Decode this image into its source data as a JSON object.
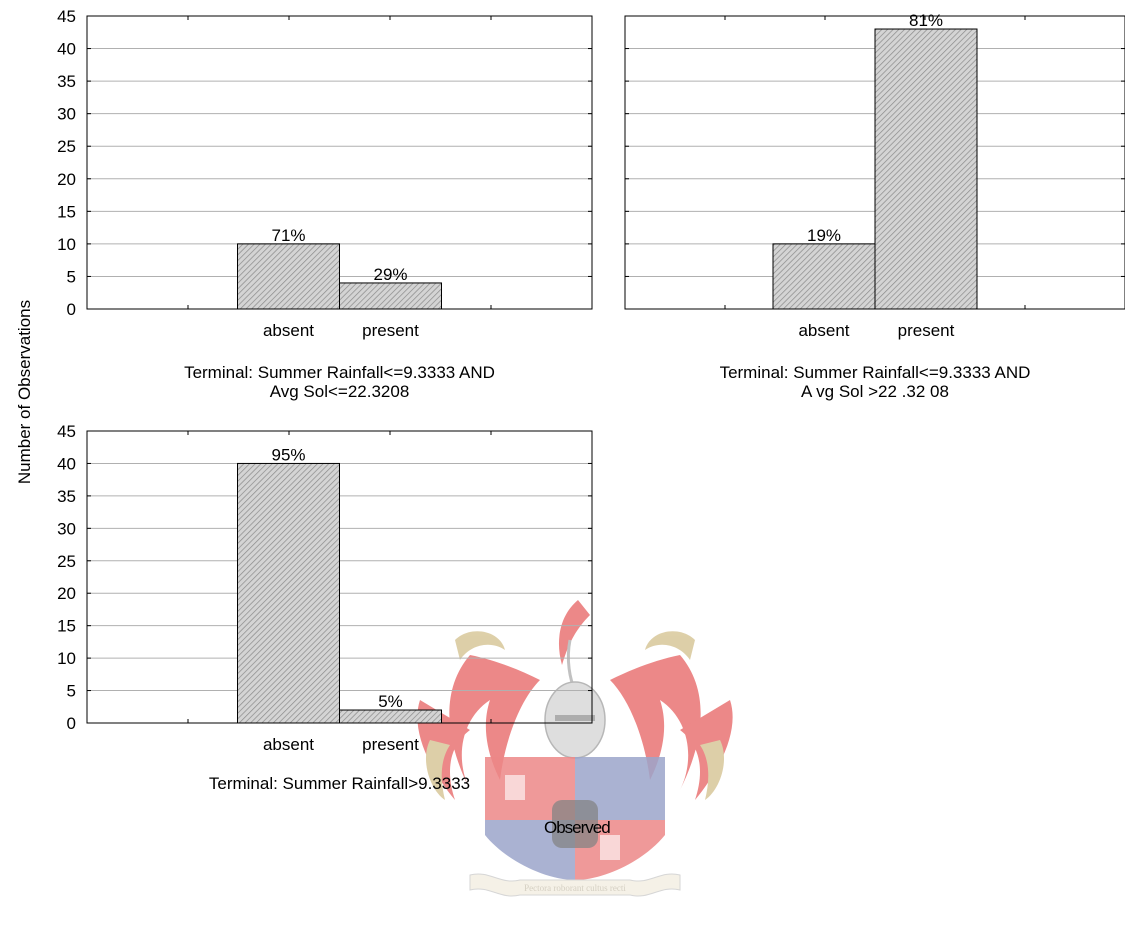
{
  "figure": {
    "ylabel": "Number of Observations",
    "observed_label": "Observed",
    "crest_motto": "Pectora roborant cultus recti",
    "colors": {
      "bar_fill": "#d4d4d4",
      "bar_hatch": "#8a8a8a",
      "axis": "#000000",
      "grid": "#b0b0b0",
      "crest_red": "#e03a3a",
      "crest_gold": "#c8b070",
      "crest_blue": "#5a6aa8"
    }
  },
  "chart_data": [
    {
      "type": "bar",
      "title": [
        "Terminal: Summer Rainfall<=9.3333 AND",
        "Avg Sol<=22.3208"
      ],
      "categories": [
        "absent",
        "present"
      ],
      "values": [
        10,
        4
      ],
      "labels": [
        "71%",
        "29%"
      ],
      "ylim": [
        0,
        45
      ],
      "yticks": [
        0,
        5,
        10,
        15,
        20,
        25,
        30,
        35,
        40,
        45
      ],
      "grid": true,
      "show_tick_labels": true
    },
    {
      "type": "bar",
      "title": [
        "Terminal: Summer Rainfall<=9.3333 AND",
        "A vg Sol >22 .32 08"
      ],
      "categories": [
        "absent",
        "present"
      ],
      "values": [
        10,
        43
      ],
      "labels": [
        "19%",
        "81%"
      ],
      "ylim": [
        0,
        45
      ],
      "yticks": [
        0,
        5,
        10,
        15,
        20,
        25,
        30,
        35,
        40,
        45
      ],
      "grid": true,
      "show_tick_labels": false
    },
    {
      "type": "bar",
      "title": [
        "Terminal: Summer Rainfall>9.3333"
      ],
      "categories": [
        "absent",
        "present"
      ],
      "values": [
        40,
        2
      ],
      "labels": [
        "95%",
        "5%"
      ],
      "ylim": [
        0,
        45
      ],
      "yticks": [
        0,
        5,
        10,
        15,
        20,
        25,
        30,
        35,
        40,
        45
      ],
      "grid": true,
      "show_tick_labels": true
    }
  ]
}
